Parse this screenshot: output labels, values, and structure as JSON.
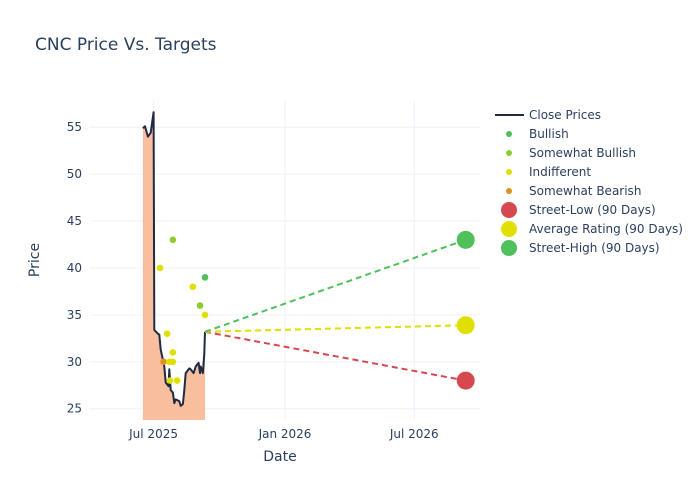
{
  "chart_data": {
    "type": "line",
    "title": "CNC Price Vs. Targets",
    "xlabel": "Date",
    "ylabel": "Price",
    "xlim": [
      "2025-04-03",
      "2026-10-01"
    ],
    "ylim": [
      23.8,
      57.9
    ],
    "x_ticks": [
      {
        "date": "2025-07-01",
        "label": "Jul 2025"
      },
      {
        "date": "2026-01-01",
        "label": "Jan 2026"
      },
      {
        "date": "2026-07-01",
        "label": "Jul 2026"
      }
    ],
    "y_ticks": [
      25,
      30,
      35,
      40,
      45,
      50,
      55
    ],
    "grid": true,
    "legend_position": "right",
    "colors": {
      "close": "#1f2a44",
      "fill": "#f9bb98",
      "bullish": "#4fc05a",
      "somewhat_bullish": "#8acd2c",
      "indifferent": "#e0e000",
      "somewhat_bearish": "#e0901f",
      "street_low": "#d64850",
      "average": "#e0e000",
      "street_high": "#4fc05a",
      "grid": "#eef0f8",
      "text": "#2a3f5f"
    },
    "close_prices": [
      [
        "2025-06-16",
        54.9
      ],
      [
        "2025-06-19",
        55.1
      ],
      [
        "2025-06-23",
        54.0
      ],
      [
        "2025-06-25",
        54.2
      ],
      [
        "2025-06-27",
        54.4
      ],
      [
        "2025-07-01",
        56.6
      ],
      [
        "2025-07-02",
        33.4
      ],
      [
        "2025-07-07",
        33.0
      ],
      [
        "2025-07-09",
        32.9
      ],
      [
        "2025-07-11",
        31.3
      ],
      [
        "2025-07-16",
        29.5
      ],
      [
        "2025-07-18",
        27.8
      ],
      [
        "2025-07-22",
        27.4
      ],
      [
        "2025-07-23",
        29.2
      ],
      [
        "2025-07-25",
        27.0
      ],
      [
        "2025-07-28",
        26.7
      ],
      [
        "2025-07-30",
        25.6
      ],
      [
        "2025-08-01",
        26.0
      ],
      [
        "2025-08-06",
        25.8
      ],
      [
        "2025-08-08",
        25.3
      ],
      [
        "2025-08-11",
        25.5
      ],
      [
        "2025-08-13",
        27.0
      ],
      [
        "2025-08-15",
        28.8
      ],
      [
        "2025-08-20",
        29.3
      ],
      [
        "2025-08-22",
        29.2
      ],
      [
        "2025-08-26",
        28.8
      ],
      [
        "2025-08-29",
        29.5
      ],
      [
        "2025-09-02",
        29.9
      ],
      [
        "2025-09-04",
        28.8
      ],
      [
        "2025-09-05",
        29.5
      ],
      [
        "2025-09-08",
        28.8
      ],
      [
        "2025-09-10",
        30.9
      ],
      [
        "2025-09-11",
        33.2
      ]
    ],
    "ratings": [
      {
        "date": "2025-07-28",
        "price": 43,
        "sentiment": "somewhat_bullish"
      },
      {
        "date": "2025-07-10",
        "price": 40,
        "sentiment": "indifferent"
      },
      {
        "date": "2025-09-11",
        "price": 39,
        "sentiment": "bullish"
      },
      {
        "date": "2025-08-25",
        "price": 38,
        "sentiment": "indifferent"
      },
      {
        "date": "2025-09-04",
        "price": 36,
        "sentiment": "somewhat_bullish"
      },
      {
        "date": "2025-09-11",
        "price": 35,
        "sentiment": "indifferent"
      },
      {
        "date": "2025-07-20",
        "price": 33,
        "sentiment": "indifferent"
      },
      {
        "date": "2025-07-28",
        "price": 31,
        "sentiment": "indifferent"
      },
      {
        "date": "2025-07-15",
        "price": 30,
        "sentiment": "somewhat_bearish"
      },
      {
        "date": "2025-07-23",
        "price": 30,
        "sentiment": "indifferent"
      },
      {
        "date": "2025-07-28",
        "price": 30,
        "sentiment": "indifferent"
      },
      {
        "date": "2025-07-24",
        "price": 28,
        "sentiment": "indifferent"
      },
      {
        "date": "2025-08-03",
        "price": 28,
        "sentiment": "indifferent"
      }
    ],
    "targets": {
      "start": {
        "date": "2025-09-11",
        "price": 33.2
      },
      "date": "2026-09-11",
      "street_low": 28,
      "average": 33.9,
      "street_high": 43
    },
    "legend": [
      {
        "key": "close",
        "label": "Close Prices",
        "kind": "line"
      },
      {
        "key": "bullish",
        "label": "Bullish",
        "kind": "small"
      },
      {
        "key": "somewhat_bullish",
        "label": "Somewhat Bullish",
        "kind": "small"
      },
      {
        "key": "indifferent",
        "label": "Indifferent",
        "kind": "small"
      },
      {
        "key": "somewhat_bearish",
        "label": "Somewhat Bearish",
        "kind": "small"
      },
      {
        "key": "street_low",
        "label": "Street-Low (90 Days)",
        "kind": "big"
      },
      {
        "key": "average",
        "label": "Average Rating (90 Days)",
        "kind": "big"
      },
      {
        "key": "street_high",
        "label": "Street-High (90 Days)",
        "kind": "big"
      }
    ]
  }
}
